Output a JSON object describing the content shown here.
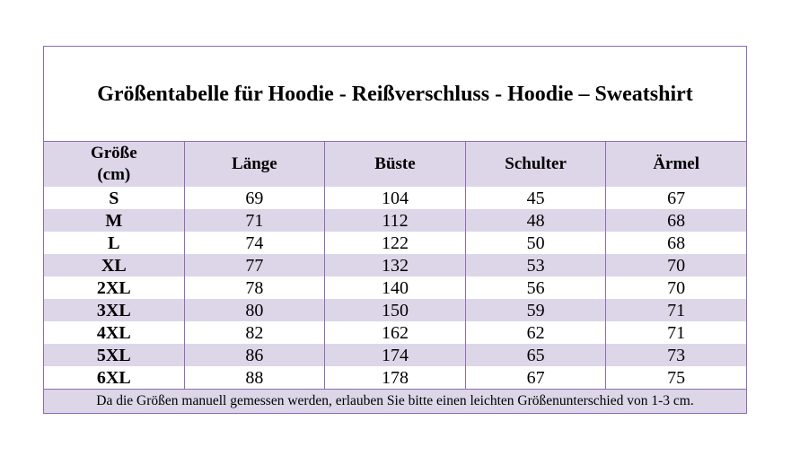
{
  "title": "Größentabelle für Hoodie - Reißverschluss - Hoodie – Sweatshirt",
  "headers": [
    "Größe\n(cm)",
    "Länge",
    "Büste",
    "Schulter",
    "Ärmel"
  ],
  "rows": [
    [
      "S",
      "69",
      "104",
      "45",
      "67"
    ],
    [
      "M",
      "71",
      "112",
      "48",
      "68"
    ],
    [
      "L",
      "74",
      "122",
      "50",
      "68"
    ],
    [
      "XL",
      "77",
      "132",
      "53",
      "70"
    ],
    [
      "2XL",
      "78",
      "140",
      "56",
      "70"
    ],
    [
      "3XL",
      "80",
      "150",
      "59",
      "71"
    ],
    [
      "4XL",
      "82",
      "162",
      "62",
      "71"
    ],
    [
      "5XL",
      "86",
      "174",
      "65",
      "73"
    ],
    [
      "6XL",
      "88",
      "178",
      "67",
      "75"
    ]
  ],
  "footnote": "Da die Größen manuell gemessen werden, erlauben Sie bitte einen leichten Größenunterschied von 1-3 cm.",
  "colors": {
    "border": "#8e6cb5",
    "stripe": "#ddd6e8"
  }
}
